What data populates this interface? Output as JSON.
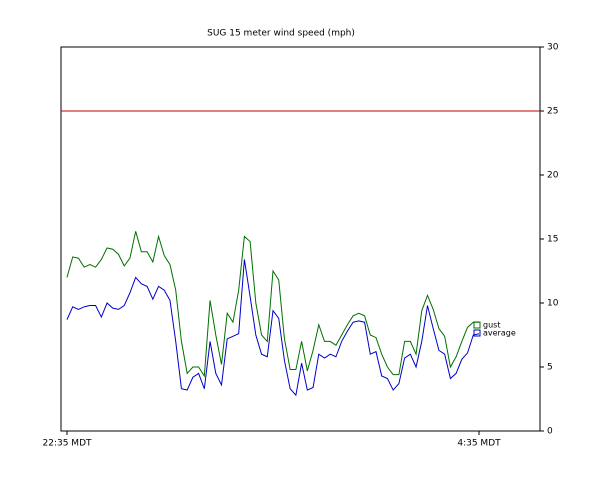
{
  "chart_data": {
    "type": "line",
    "title": "SUG 15 meter wind speed (mph)",
    "categories": [
      "22:35 MDT",
      null,
      null,
      null,
      null,
      null,
      null,
      null,
      null,
      null,
      null,
      null,
      null,
      null,
      null,
      null,
      null,
      null,
      null,
      null,
      null,
      null,
      null,
      null,
      null,
      null,
      null,
      null,
      null,
      null,
      null,
      null,
      null,
      null,
      null,
      null,
      null,
      null,
      null,
      null,
      null,
      null,
      null,
      null,
      null,
      null,
      null,
      null,
      null,
      null,
      null,
      null,
      null,
      null,
      null,
      null,
      null,
      null,
      null,
      null,
      null,
      null,
      null,
      null,
      null,
      null,
      null,
      null,
      null,
      null,
      null,
      null,
      "4:35 MDT"
    ],
    "series": [
      {
        "name": "gust",
        "color": "#007000",
        "values": [
          12,
          13.6,
          13.5,
          12.8,
          13,
          12.8,
          13.4,
          14.3,
          14.2,
          13.8,
          12.9,
          13.5,
          15.6,
          14,
          14,
          13.2,
          15.2,
          13.7,
          13,
          11,
          7,
          4.5,
          5,
          5,
          4.3,
          10.2,
          7.5,
          5.2,
          9.2,
          8.5,
          11,
          15.2,
          14.8,
          10,
          7.5,
          7,
          12.5,
          11.8,
          7.2,
          4.8,
          4.8,
          7,
          4.7,
          6.3,
          8.3,
          7,
          7,
          6.7,
          7.5,
          8.3,
          9,
          9.2,
          9,
          7.5,
          7.3,
          6,
          5,
          4.4,
          4.4,
          7,
          7,
          6,
          9.4,
          10.6,
          9.5,
          8,
          7.4,
          5,
          5.8,
          7,
          8.1,
          8.5,
          8.5
        ]
      },
      {
        "name": "average",
        "color": "#0000c8",
        "values": [
          8.7,
          9.7,
          9.5,
          9.7,
          9.8,
          9.8,
          8.9,
          10,
          9.6,
          9.5,
          9.8,
          10.8,
          12,
          11.5,
          11.3,
          10.3,
          11.3,
          11,
          10.2,
          7,
          3.3,
          3.2,
          4.2,
          4.5,
          3.3,
          7,
          4.5,
          3.6,
          7.2,
          7.4,
          7.6,
          13.4,
          10.5,
          7.5,
          6,
          5.8,
          9.4,
          8.8,
          5.5,
          3.3,
          2.8,
          5.3,
          3.2,
          3.4,
          6,
          5.7,
          6,
          5.8,
          7,
          7.8,
          8.5,
          8.6,
          8.5,
          6,
          6.2,
          4.3,
          4.1,
          3.2,
          3.7,
          5.7,
          6,
          5,
          7,
          9.8,
          8,
          6.3,
          6,
          4.1,
          4.5,
          5.6,
          6.1,
          7.5,
          7.6
        ]
      }
    ],
    "reference_line": {
      "value": 25,
      "color": "#c00000"
    },
    "ylim": [
      0,
      30
    ],
    "yticks": [
      0,
      5,
      10,
      15,
      20,
      25,
      30
    ],
    "y_axis_side": "right"
  }
}
